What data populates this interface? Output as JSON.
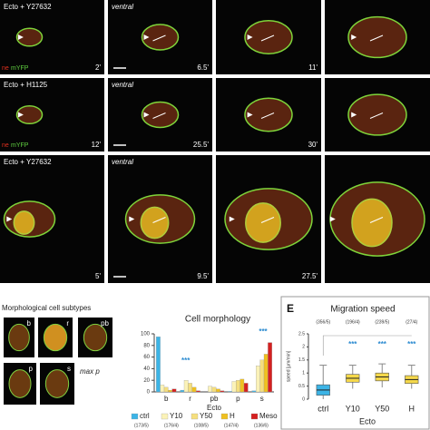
{
  "microscopy": {
    "channel_labels": [
      "ne",
      "mYFP"
    ],
    "rows": [
      {
        "condition": "Ecto + Y27632",
        "view": "ventral",
        "times": [
          "2'",
          "6.5'",
          "11'"
        ]
      },
      {
        "condition": "Ecto + H1125",
        "view": "ventral",
        "times": [
          "12'",
          "25.5'",
          "30'"
        ]
      },
      {
        "condition": "Ecto + Y27632",
        "view": "ventral",
        "times": [
          "5'",
          "9.5'",
          "27.5'"
        ]
      }
    ]
  },
  "subtypes": {
    "title": "Morphological cell subtypes",
    "labels": [
      "b",
      "r",
      "pb",
      "p",
      "s"
    ],
    "note": "max p"
  },
  "chart_data": [
    {
      "type": "bar",
      "title": "Cell morphology",
      "xlabel": "Ecto",
      "categories": [
        "b",
        "r",
        "pb",
        "p",
        "s"
      ],
      "series": [
        {
          "name": "ctrl",
          "color": "#3cb4e6",
          "values": [
            95,
            3,
            0,
            1,
            2
          ]
        },
        {
          "name": "Y10",
          "color": "#fbf2b8",
          "values": [
            12,
            20,
            10,
            18,
            45
          ]
        },
        {
          "name": "Y50",
          "color": "#f5df7e",
          "values": [
            8,
            15,
            8,
            20,
            55
          ]
        },
        {
          "name": "H",
          "color": "#efc020",
          "values": [
            3,
            8,
            5,
            22,
            65
          ]
        },
        {
          "name": "Meso",
          "color": "#d42020",
          "values": [
            5,
            2,
            2,
            15,
            85
          ]
        }
      ],
      "counts": [
        "(173/5)",
        "(176/4)",
        "(108/5)",
        "(147/4)",
        "(136/6)"
      ],
      "annotations": [
        "***",
        "***"
      ],
      "ylim": [
        0,
        100
      ],
      "yticks": [
        0,
        20,
        40,
        60,
        80,
        100
      ]
    },
    {
      "type": "box",
      "panel_letter": "E",
      "title": "Migration speed",
      "ylabel": "speed [µm/min]",
      "xlabel": "Ecto",
      "categories": [
        "ctrl",
        "Y10",
        "Y50",
        "H"
      ],
      "colors": [
        "#3cb4e6",
        "#f5d84a",
        "#f5d84a",
        "#f5d84a"
      ],
      "boxes": [
        {
          "min": 0,
          "q1": 0.15,
          "median": 0.35,
          "q3": 0.55,
          "max": 1.3
        },
        {
          "min": 0.4,
          "q1": 0.65,
          "median": 0.8,
          "q3": 0.95,
          "max": 1.3
        },
        {
          "min": 0.45,
          "q1": 0.7,
          "median": 0.85,
          "q3": 1.0,
          "max": 1.35
        },
        {
          "min": 0.4,
          "q1": 0.6,
          "median": 0.75,
          "q3": 0.9,
          "max": 1.3
        }
      ],
      "counts": [
        "(356/5)",
        "(196/4)",
        "(239/5)",
        "(27/4)"
      ],
      "annotations": [
        "***",
        "***",
        "***"
      ],
      "ylim": [
        0,
        2.5
      ],
      "yticks": [
        0,
        0.5,
        1,
        1.5,
        2,
        2.5
      ]
    }
  ]
}
